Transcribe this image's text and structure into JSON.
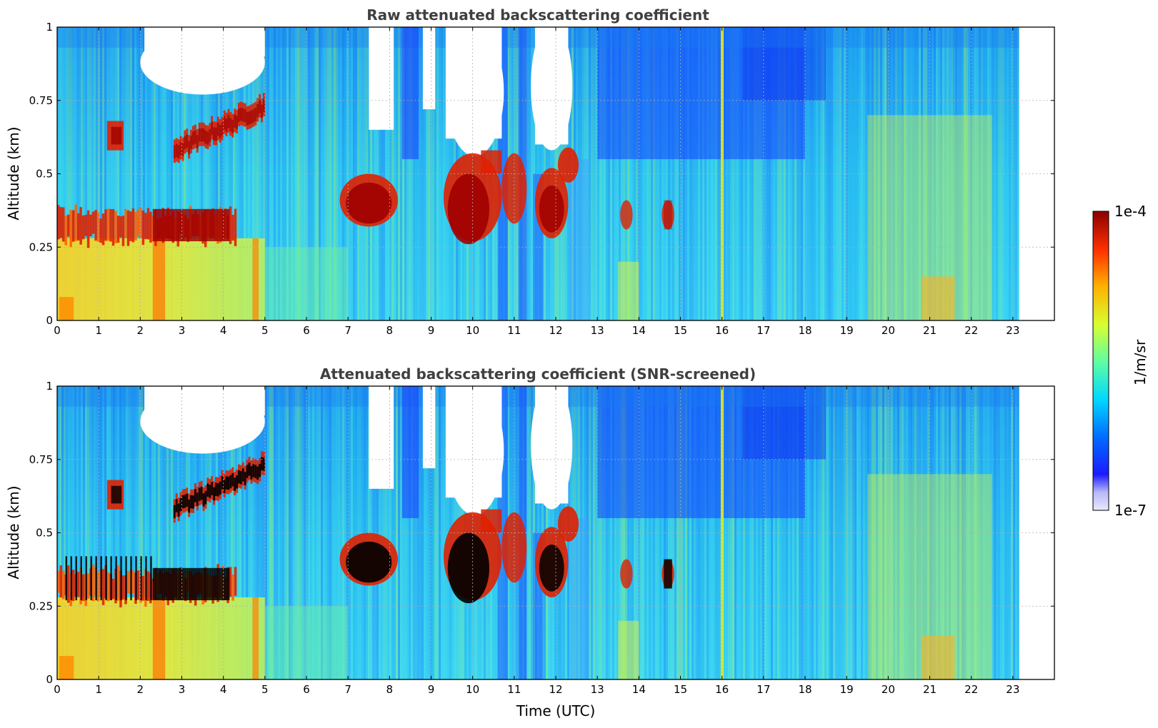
{
  "chart_data": [
    {
      "type": "heatmap",
      "title": "Raw attenuated backscattering coefficient",
      "xlabel": "",
      "ylabel": "Altitude (km)",
      "xlim": [
        0,
        24
      ],
      "ylim": [
        0,
        1
      ],
      "x_ticks": [
        "0",
        "1",
        "2",
        "3",
        "4",
        "5",
        "6",
        "7",
        "8",
        "9",
        "10",
        "11",
        "12",
        "13",
        "14",
        "15",
        "16",
        "17",
        "18",
        "19",
        "20",
        "21",
        "22",
        "23"
      ],
      "y_ticks": [
        "0",
        "0.25",
        "0.5",
        "0.75",
        "1"
      ],
      "data_extent_hours": [
        0,
        23.15
      ],
      "grid": true,
      "colormap": "jet",
      "features": [
        {
          "name": "boundary-layer",
          "x": [
            0,
            5
          ],
          "y": [
            0,
            0.3
          ],
          "level": "high"
        },
        {
          "name": "aerosol-layer-1",
          "x": [
            0,
            4.3
          ],
          "y": [
            0.25,
            0.42
          ],
          "level": "max"
        },
        {
          "name": "cloud-3-5h",
          "x": [
            2.8,
            5
          ],
          "y": [
            0.55,
            0.8
          ],
          "level": "max"
        },
        {
          "name": "cloud-7-8h",
          "x": [
            6.8,
            8.2
          ],
          "y": [
            0.32,
            0.5
          ],
          "level": "max"
        },
        {
          "name": "cloud-9-12h",
          "x": [
            9.3,
            12.5
          ],
          "y": [
            0.25,
            0.6
          ],
          "level": "max"
        },
        {
          "name": "no-signal-10h",
          "x": [
            9.4,
            10.7
          ],
          "y": [
            0.6,
            1.0
          ],
          "level": "none"
        },
        {
          "name": "thin-line-16h",
          "x": [
            15.97,
            16.03
          ],
          "y": [
            0,
            1
          ],
          "level": "mid"
        }
      ]
    },
    {
      "type": "heatmap",
      "title": "Attenuated backscattering coefficient (SNR-screened)",
      "xlabel": "Time (UTC)",
      "ylabel": "Altitude (km)",
      "xlim": [
        0,
        24
      ],
      "ylim": [
        0,
        1
      ],
      "x_ticks": [
        "0",
        "1",
        "2",
        "3",
        "4",
        "5",
        "6",
        "7",
        "8",
        "9",
        "10",
        "11",
        "12",
        "13",
        "14",
        "15",
        "16",
        "17",
        "18",
        "19",
        "20",
        "21",
        "22",
        "23"
      ],
      "y_ticks": [
        "0",
        "0.25",
        "0.5",
        "0.75",
        "1"
      ],
      "data_extent_hours": [
        0,
        23.15
      ],
      "grid": true,
      "colormap": "jet",
      "screened_color": "#000000"
    }
  ],
  "colorbar": {
    "label": "1/m/sr",
    "max_label": "1e-4",
    "min_label": "1e-7",
    "vmin": 1e-07,
    "vmax": 0.0001,
    "scale": "log"
  },
  "colors": {
    "title": "#404040",
    "grid": "#b0b0b0",
    "background": "#ffffff"
  }
}
